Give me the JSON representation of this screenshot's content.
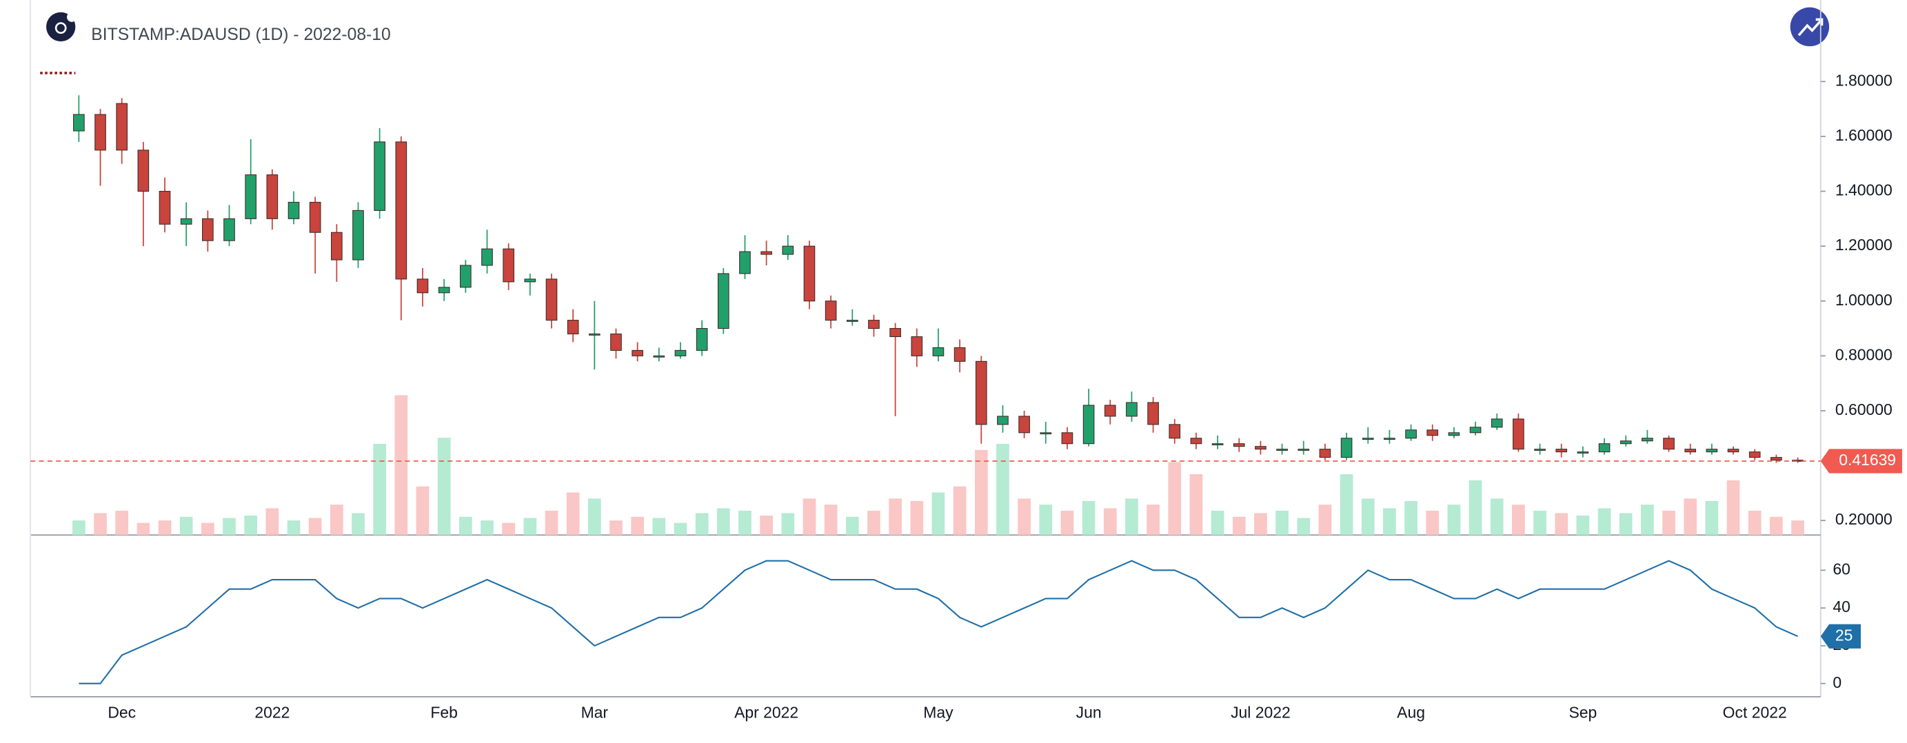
{
  "chart_data": [
    {
      "type": "candlestick",
      "title": "BITSTAMP:ADAUSD (1D) - 2022-08-10",
      "categories": [
        null,
        null,
        "Dec",
        null,
        null,
        null,
        null,
        null,
        null,
        "2022",
        null,
        null,
        null,
        null,
        null,
        null,
        null,
        "Feb",
        null,
        null,
        null,
        null,
        null,
        null,
        "Mar",
        null,
        null,
        null,
        null,
        null,
        null,
        null,
        "Apr 2022",
        null,
        null,
        null,
        null,
        null,
        null,
        null,
        "May",
        null,
        null,
        null,
        null,
        null,
        null,
        "Jun",
        null,
        null,
        null,
        null,
        null,
        null,
        null,
        "Jul 2022",
        null,
        null,
        null,
        null,
        null,
        null,
        "Aug",
        null,
        null,
        null,
        null,
        null,
        null,
        null,
        "Sep",
        null,
        null,
        null,
        null,
        null,
        null,
        null,
        "Oct 2022",
        null,
        null
      ],
      "open": [
        1.62,
        1.68,
        1.72,
        1.55,
        1.4,
        1.28,
        1.3,
        1.22,
        1.3,
        1.46,
        1.3,
        1.36,
        1.25,
        1.15,
        1.33,
        1.58,
        1.08,
        1.03,
        1.05,
        1.13,
        1.19,
        1.07,
        1.08,
        0.93,
        0.88,
        0.88,
        0.82,
        0.8,
        0.8,
        0.82,
        0.9,
        1.1,
        1.18,
        1.17,
        1.2,
        1.0,
        0.93,
        0.93,
        0.9,
        0.87,
        0.8,
        0.83,
        0.78,
        0.55,
        0.58,
        0.52,
        0.52,
        0.48,
        0.62,
        0.58,
        0.63,
        0.55,
        0.5,
        0.48,
        0.48,
        0.47,
        0.46,
        0.46,
        0.46,
        0.43,
        0.5,
        0.5,
        0.5,
        0.53,
        0.51,
        0.52,
        0.54,
        0.57,
        0.46,
        0.46,
        0.45,
        0.45,
        0.48,
        0.49,
        0.5,
        0.46,
        0.45,
        0.46,
        0.45,
        0.43,
        0.42
      ],
      "high": [
        1.75,
        1.7,
        1.74,
        1.58,
        1.45,
        1.36,
        1.33,
        1.35,
        1.59,
        1.48,
        1.4,
        1.38,
        1.28,
        1.36,
        1.63,
        1.6,
        1.12,
        1.08,
        1.15,
        1.26,
        1.21,
        1.1,
        1.1,
        0.97,
        1.0,
        0.9,
        0.85,
        0.83,
        0.85,
        0.93,
        1.12,
        1.24,
        1.22,
        1.24,
        1.22,
        1.02,
        0.97,
        0.95,
        0.92,
        0.9,
        0.9,
        0.86,
        0.8,
        0.62,
        0.6,
        0.56,
        0.54,
        0.68,
        0.64,
        0.67,
        0.65,
        0.57,
        0.52,
        0.51,
        0.5,
        0.49,
        0.48,
        0.49,
        0.48,
        0.52,
        0.54,
        0.53,
        0.55,
        0.55,
        0.54,
        0.56,
        0.59,
        0.59,
        0.48,
        0.48,
        0.47,
        0.5,
        0.51,
        0.53,
        0.51,
        0.48,
        0.48,
        0.47,
        0.46,
        0.44,
        0.43
      ],
      "low": [
        1.58,
        1.42,
        1.5,
        1.2,
        1.25,
        1.2,
        1.18,
        1.2,
        1.28,
        1.26,
        1.28,
        1.1,
        1.07,
        1.12,
        1.3,
        0.93,
        0.98,
        1.0,
        1.03,
        1.1,
        1.04,
        1.02,
        0.9,
        0.85,
        0.75,
        0.79,
        0.78,
        0.78,
        0.79,
        0.8,
        0.88,
        1.08,
        1.13,
        1.15,
        0.97,
        0.9,
        0.91,
        0.87,
        0.58,
        0.76,
        0.78,
        0.74,
        0.48,
        0.52,
        0.5,
        0.48,
        0.46,
        0.47,
        0.55,
        0.56,
        0.52,
        0.48,
        0.46,
        0.46,
        0.45,
        0.44,
        0.44,
        0.44,
        0.42,
        0.42,
        0.48,
        0.48,
        0.49,
        0.49,
        0.5,
        0.51,
        0.53,
        0.45,
        0.44,
        0.43,
        0.43,
        0.44,
        0.47,
        0.48,
        0.45,
        0.44,
        0.44,
        0.44,
        0.42,
        0.41,
        0.41
      ],
      "close": [
        1.68,
        1.55,
        1.55,
        1.4,
        1.28,
        1.3,
        1.22,
        1.3,
        1.46,
        1.3,
        1.36,
        1.25,
        1.15,
        1.33,
        1.58,
        1.08,
        1.03,
        1.05,
        1.13,
        1.19,
        1.07,
        1.08,
        0.93,
        0.88,
        0.88,
        0.82,
        0.8,
        0.8,
        0.82,
        0.9,
        1.1,
        1.18,
        1.17,
        1.2,
        1.0,
        0.93,
        0.93,
        0.9,
        0.87,
        0.8,
        0.83,
        0.78,
        0.55,
        0.58,
        0.52,
        0.52,
        0.48,
        0.62,
        0.58,
        0.63,
        0.55,
        0.5,
        0.48,
        0.48,
        0.47,
        0.46,
        0.46,
        0.46,
        0.43,
        0.5,
        0.5,
        0.5,
        0.53,
        0.51,
        0.52,
        0.54,
        0.57,
        0.46,
        0.46,
        0.45,
        0.45,
        0.48,
        0.49,
        0.5,
        0.46,
        0.45,
        0.46,
        0.45,
        0.43,
        0.42,
        0.41639
      ],
      "volume": [
        12,
        18,
        20,
        10,
        12,
        15,
        10,
        14,
        16,
        22,
        12,
        14,
        25,
        18,
        75,
        115,
        40,
        80,
        15,
        12,
        10,
        14,
        20,
        35,
        30,
        12,
        15,
        14,
        10,
        18,
        22,
        20,
        16,
        18,
        30,
        25,
        15,
        20,
        30,
        28,
        35,
        40,
        70,
        75,
        30,
        25,
        20,
        28,
        22,
        30,
        25,
        60,
        50,
        20,
        15,
        18,
        20,
        14,
        25,
        50,
        30,
        22,
        28,
        20,
        25,
        45,
        30,
        25,
        20,
        18,
        16,
        22,
        18,
        25,
        20,
        30,
        28,
        45,
        20,
        15,
        12
      ],
      "up_color": "#22a06b",
      "down_color": "#c8443c",
      "wick_color": "#3a2a2a",
      "volume_up_color": "#b5ead3",
      "volume_down_color": "#f9c7c5",
      "last_price_color": "#f05a50",
      "ylim": [
        0.147,
        2.097
      ],
      "yticks": [
        {
          "value": 0.2,
          "label": "0.20000"
        },
        {
          "value": 0.6,
          "label": "0.60000"
        },
        {
          "value": 0.8,
          "label": "0.80000"
        },
        {
          "value": 1.0,
          "label": "1.00000"
        },
        {
          "value": 1.2,
          "label": "1.20000"
        },
        {
          "value": 1.4,
          "label": "1.40000"
        },
        {
          "value": 1.6,
          "label": "1.60000"
        },
        {
          "value": 1.8,
          "label": "1.80000"
        }
      ],
      "grid": false
    },
    {
      "type": "line",
      "values": [
        0,
        0,
        15,
        20,
        25,
        30,
        40,
        50,
        50,
        55,
        55,
        55,
        45,
        40,
        45,
        45,
        40,
        45,
        50,
        55,
        50,
        45,
        40,
        30,
        20,
        25,
        30,
        35,
        35,
        40,
        50,
        60,
        65,
        65,
        60,
        55,
        55,
        55,
        50,
        50,
        45,
        35,
        30,
        35,
        40,
        45,
        45,
        55,
        60,
        65,
        60,
        60,
        55,
        45,
        35,
        35,
        40,
        35,
        40,
        50,
        60,
        55,
        55,
        50,
        45,
        45,
        50,
        45,
        50,
        50,
        50,
        50,
        55,
        60,
        65,
        60,
        50,
        45,
        40,
        30,
        25
      ],
      "color": "#1f6fa8",
      "ylim": [
        -7,
        78
      ],
      "yticks": [
        0,
        20,
        40,
        60
      ],
      "grid": false
    }
  ]
}
